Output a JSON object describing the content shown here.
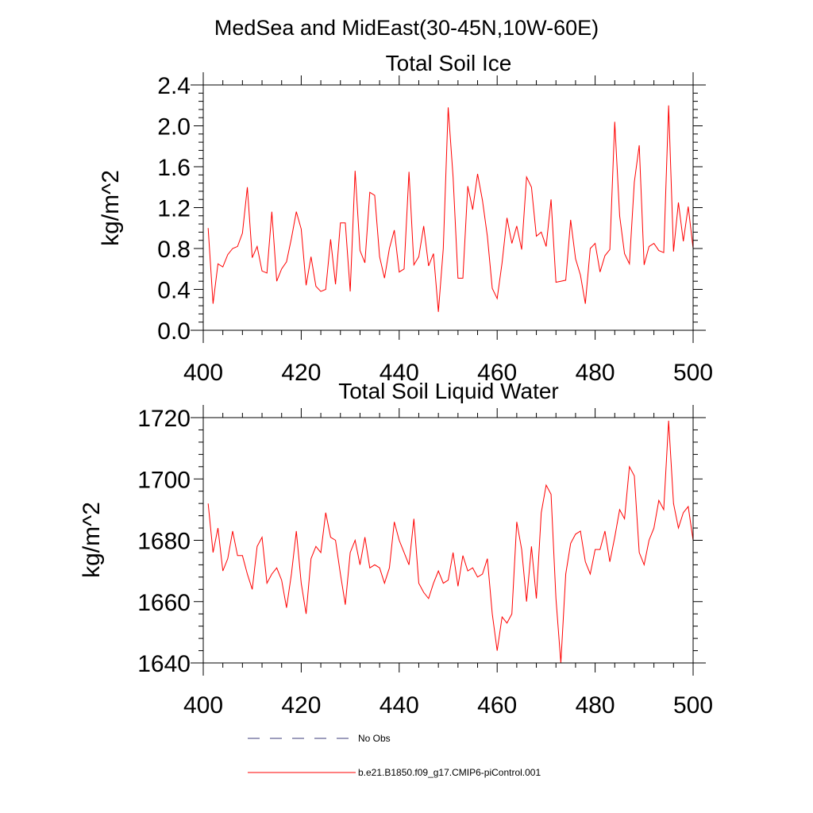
{
  "figure": {
    "title": "MedSea and MidEast(30-45N,10W-60E)"
  },
  "legend": {
    "items": [
      {
        "label": "No Obs",
        "style": "dashed",
        "color": "#3b3b7a"
      },
      {
        "label": "b.e21.B1850.f09_g17.CMIP6-piControl.001",
        "style": "solid",
        "color": "#ff0000"
      }
    ]
  },
  "chart_data": [
    {
      "type": "line",
      "title": "Total Soil Ice",
      "xlabel": "",
      "ylabel": "kg/m^2",
      "xlim": [
        400,
        500
      ],
      "ylim": [
        0.0,
        2.4
      ],
      "xticks": [
        400,
        420,
        440,
        460,
        480,
        500
      ],
      "xtick_labels": [
        "400",
        "420",
        "440",
        "460",
        "480",
        "500"
      ],
      "yticks": [
        0.0,
        0.4,
        0.8,
        1.2,
        1.6,
        2.0,
        2.4
      ],
      "ytick_labels": [
        "0.0",
        "0.4",
        "0.8",
        "1.2",
        "1.6",
        "2.0",
        "2.4"
      ],
      "series": [
        {
          "name": "b.e21.B1850.f09_g17.CMIP6-piControl.001",
          "color": "#ff0000",
          "x": [
            401,
            402,
            403,
            404,
            405,
            406,
            407,
            408,
            409,
            410,
            411,
            412,
            413,
            414,
            415,
            416,
            417,
            418,
            419,
            420,
            421,
            422,
            423,
            424,
            425,
            426,
            427,
            428,
            429,
            430,
            431,
            432,
            433,
            434,
            435,
            436,
            437,
            438,
            439,
            440,
            441,
            442,
            443,
            444,
            445,
            446,
            447,
            448,
            449,
            450,
            451,
            452,
            453,
            454,
            455,
            456,
            457,
            458,
            459,
            460,
            461,
            462,
            463,
            464,
            465,
            466,
            467,
            468,
            469,
            470,
            471,
            472,
            473,
            474,
            475,
            476,
            477,
            478,
            479,
            480,
            481,
            482,
            483,
            484,
            485,
            486,
            487,
            488,
            489,
            490,
            491,
            492,
            493,
            494,
            495,
            496,
            497,
            498,
            499,
            500
          ],
          "values": [
            1.0,
            0.26,
            0.65,
            0.62,
            0.74,
            0.8,
            0.82,
            0.95,
            1.4,
            0.71,
            0.82,
            0.58,
            0.56,
            1.16,
            0.48,
            0.6,
            0.67,
            0.9,
            1.16,
            0.99,
            0.44,
            0.72,
            0.43,
            0.38,
            0.4,
            0.89,
            0.45,
            1.05,
            1.05,
            0.38,
            1.56,
            0.78,
            0.66,
            1.35,
            1.32,
            0.72,
            0.51,
            0.8,
            0.98,
            0.57,
            0.6,
            1.55,
            0.64,
            0.72,
            1.02,
            0.63,
            0.75,
            0.18,
            0.8,
            2.18,
            1.5,
            0.51,
            0.51,
            1.41,
            1.18,
            1.53,
            1.27,
            0.92,
            0.41,
            0.31,
            0.66,
            1.1,
            0.85,
            1.02,
            0.79,
            1.5,
            1.4,
            0.92,
            0.96,
            0.82,
            1.28,
            0.47,
            0.48,
            0.49,
            1.08,
            0.7,
            0.54,
            0.26,
            0.8,
            0.85,
            0.57,
            0.73,
            0.79,
            2.04,
            1.12,
            0.75,
            0.65,
            1.45,
            1.81,
            0.64,
            0.82,
            0.85,
            0.78,
            0.76,
            2.2,
            0.77,
            1.25,
            0.87,
            1.21,
            0.8
          ]
        }
      ]
    },
    {
      "type": "line",
      "title": "Total Soil Liquid Water",
      "xlabel": "",
      "ylabel": "kg/m^2",
      "xlim": [
        400,
        500
      ],
      "ylim": [
        1640,
        1720
      ],
      "xticks": [
        400,
        420,
        440,
        460,
        480,
        500
      ],
      "xtick_labels": [
        "400",
        "420",
        "440",
        "460",
        "480",
        "500"
      ],
      "yticks": [
        1640,
        1660,
        1680,
        1700,
        1720
      ],
      "ytick_labels": [
        "1640",
        "1660",
        "1680",
        "1700",
        "1720"
      ],
      "series": [
        {
          "name": "b.e21.B1850.f09_g17.CMIP6-piControl.001",
          "color": "#ff0000",
          "x": [
            401,
            402,
            403,
            404,
            405,
            406,
            407,
            408,
            409,
            410,
            411,
            412,
            413,
            414,
            415,
            416,
            417,
            418,
            419,
            420,
            421,
            422,
            423,
            424,
            425,
            426,
            427,
            428,
            429,
            430,
            431,
            432,
            433,
            434,
            435,
            436,
            437,
            438,
            439,
            440,
            441,
            442,
            443,
            444,
            445,
            446,
            447,
            448,
            449,
            450,
            451,
            452,
            453,
            454,
            455,
            456,
            457,
            458,
            459,
            460,
            461,
            462,
            463,
            464,
            465,
            466,
            467,
            468,
            469,
            470,
            471,
            472,
            473,
            474,
            475,
            476,
            477,
            478,
            479,
            480,
            481,
            482,
            483,
            484,
            485,
            486,
            487,
            488,
            489,
            490,
            491,
            492,
            493,
            494,
            495,
            496,
            497,
            498,
            499,
            500
          ],
          "values": [
            1692,
            1676,
            1684,
            1670,
            1674,
            1683,
            1675,
            1675,
            1669,
            1664,
            1678,
            1681,
            1666,
            1669,
            1671,
            1667,
            1658,
            1669,
            1683,
            1666,
            1656,
            1674,
            1678,
            1676,
            1689,
            1681,
            1680,
            1669,
            1659,
            1676,
            1680,
            1672,
            1681,
            1671,
            1672,
            1671,
            1666,
            1671,
            1686,
            1680,
            1676,
            1672,
            1687,
            1666,
            1663,
            1661,
            1666,
            1670,
            1666,
            1667,
            1676,
            1665,
            1675,
            1670,
            1671,
            1668,
            1669,
            1674,
            1656,
            1644,
            1655,
            1653,
            1656,
            1686,
            1677,
            1660,
            1678,
            1661,
            1689,
            1698,
            1695,
            1661,
            1640,
            1669,
            1679,
            1682,
            1683,
            1673,
            1669,
            1677,
            1677,
            1683,
            1673,
            1681,
            1690,
            1687,
            1704,
            1701,
            1676,
            1672,
            1680,
            1684,
            1693,
            1690,
            1719,
            1692,
            1684,
            1689,
            1691,
            1680
          ]
        }
      ]
    }
  ]
}
